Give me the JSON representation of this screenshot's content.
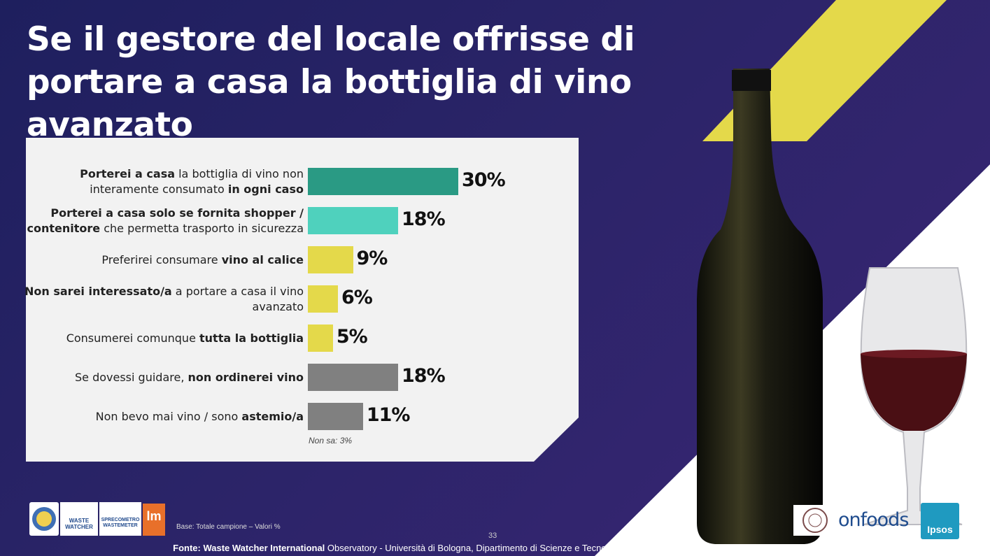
{
  "title": "Se il gestore del locale offrisse di portare a casa la bottiglia di vino avanzato",
  "chart_data": {
    "type": "bar",
    "orientation": "horizontal",
    "xlim": [
      0,
      30
    ],
    "categories": [
      {
        "parts": [
          {
            "t": "Porterei a casa",
            "b": true
          },
          {
            "t": " la bottiglia di vino non interamente consumato ",
            "b": false
          },
          {
            "t": "in ogni caso",
            "b": true
          }
        ]
      },
      {
        "parts": [
          {
            "t": "Porterei a casa solo se fornita shopper / contenitore",
            "b": true
          },
          {
            "t": " che permetta trasporto in sicurezza",
            "b": false
          }
        ]
      },
      {
        "parts": [
          {
            "t": "Preferirei consumare ",
            "b": false
          },
          {
            "t": "vino al calice",
            "b": true
          }
        ]
      },
      {
        "parts": [
          {
            "t": "Non sarei interessato/a",
            "b": true
          },
          {
            "t": " a portare a casa il vino avanzato",
            "b": false
          }
        ]
      },
      {
        "parts": [
          {
            "t": "Consumerei comunque ",
            "b": false
          },
          {
            "t": "tutta la bottiglia",
            "b": true
          }
        ]
      },
      {
        "parts": [
          {
            "t": "Se dovessi guidare, ",
            "b": false
          },
          {
            "t": "non ordinerei vino",
            "b": true
          }
        ]
      },
      {
        "parts": [
          {
            "t": "Non bevo mai vino / sono ",
            "b": false
          },
          {
            "t": "astemio/a",
            "b": true
          }
        ]
      }
    ],
    "values": [
      30,
      18,
      9,
      6,
      5,
      18,
      11
    ],
    "value_labels": [
      "30%",
      "18%",
      "9%",
      "6%",
      "5%",
      "18%",
      "11%"
    ],
    "colors": [
      "#2a9a84",
      "#4fd1bd",
      "#e4d94a",
      "#e4d94a",
      "#e4d94a",
      "#808080",
      "#808080"
    ],
    "note": "Non sa: 3%"
  },
  "footer": {
    "base": "Base: Totale campione – Valori %",
    "page_number": "33",
    "source_bold": "Fonte: Waste Watcher International",
    "source_rest": " Observatory - Università di Bologna, Dipartimento di Scienze e Tecnologie Agro-Alimentari su dati ed elaborazione IPSOS"
  },
  "logos": {
    "waste_watcher": "WASTE WATCHER",
    "sprecometro": "SPRECOMETRO WASTEMETER",
    "lm": "lm",
    "onfoods": "onfoods",
    "ipsos": "Ipsos"
  },
  "colors": {
    "background": "#2b2468",
    "accent_yellow": "#e4d94a"
  }
}
